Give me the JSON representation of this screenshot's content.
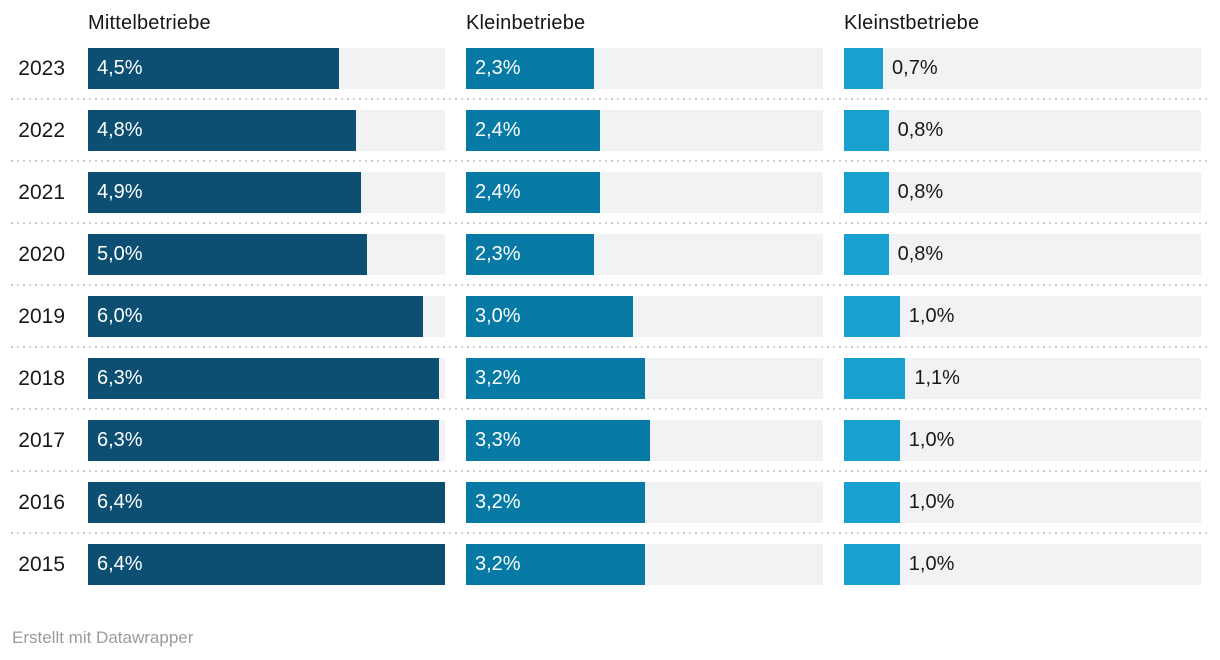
{
  "chart_data": {
    "type": "bar",
    "orientation": "horizontal",
    "categories": [
      "2023",
      "2022",
      "2021",
      "2020",
      "2019",
      "2018",
      "2017",
      "2016",
      "2015"
    ],
    "series": [
      {
        "name": "Mittelbetriebe",
        "color": "#0d4f72",
        "label_position": "inside",
        "values": [
          4.5,
          4.8,
          4.9,
          5.0,
          6.0,
          6.3,
          6.3,
          6.4,
          6.4
        ],
        "labels": [
          "4,5%",
          "4,8%",
          "4,9%",
          "5,0%",
          "6,0%",
          "6,3%",
          "6,3%",
          "6,4%",
          "6,4%"
        ]
      },
      {
        "name": "Kleinbetriebe",
        "color": "#0679a4",
        "label_position": "inside",
        "values": [
          2.3,
          2.4,
          2.4,
          2.3,
          3.0,
          3.2,
          3.3,
          3.2,
          3.2
        ],
        "labels": [
          "2,3%",
          "2,4%",
          "2,4%",
          "2,3%",
          "3,0%",
          "3,2%",
          "3,3%",
          "3,2%",
          "3,2%"
        ]
      },
      {
        "name": "Kleinstbetriebe",
        "color": "#18a1d0",
        "label_position": "outside",
        "values": [
          0.7,
          0.8,
          0.8,
          0.8,
          1.0,
          1.1,
          1.0,
          1.0,
          1.0
        ],
        "labels": [
          "0,7%",
          "0,8%",
          "0,8%",
          "0,8%",
          "1,0%",
          "1,1%",
          "1,0%",
          "1,0%",
          "1,0%"
        ]
      }
    ],
    "xlim": [
      0,
      6.4
    ],
    "track_color": "#f1f2f3",
    "separator_color": "#cccccc",
    "grid": false,
    "legend_position": "column-headers"
  },
  "footer": {
    "attribution": "Erstellt mit Datawrapper"
  }
}
